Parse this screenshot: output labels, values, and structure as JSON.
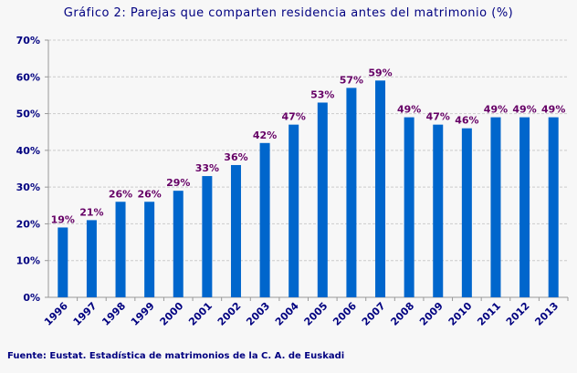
{
  "chart_data": {
    "type": "bar",
    "title": "Gráfico 2: Parejas que comparten residencia antes del matrimonio (%)",
    "source": "Fuente: Eustat. Estadística de matrimonios de la C. A. de Euskadi",
    "categories": [
      "1996",
      "1997",
      "1998",
      "1999",
      "2000",
      "2001",
      "2002",
      "2003",
      "2004",
      "2005",
      "2006",
      "2007",
      "2008",
      "2009",
      "2010",
      "2011",
      "2012",
      "2013"
    ],
    "values": [
      19,
      21,
      26,
      26,
      29,
      33,
      36,
      42,
      47,
      53,
      57,
      59,
      49,
      47,
      46,
      49,
      49,
      49
    ],
    "value_suffix": "%",
    "ylim": [
      0,
      70
    ],
    "yticks": [
      "0%",
      "10%",
      "20%",
      "30%",
      "40%",
      "50%",
      "60%",
      "70%"
    ],
    "grid": true,
    "bar_color": "#0066cc",
    "label_color": "#660066",
    "axis_text_color": "#000080"
  }
}
